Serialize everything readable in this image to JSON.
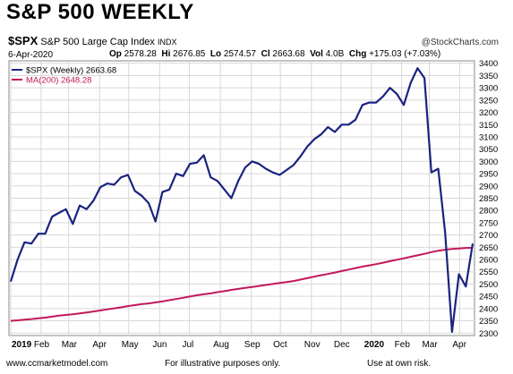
{
  "header": {
    "banner": "S&P 500 WEEKLY",
    "symbol": "$SPX",
    "description": "S&P 500 Large Cap Index",
    "exchange": "INDX",
    "copyright": "@StockCharts.com",
    "date": "6-Apr-2020",
    "ohlc": {
      "op_label": "Op",
      "op": "2578.28",
      "hi_label": "Hi",
      "hi": "2676.85",
      "lo_label": "Lo",
      "lo": "2574.57",
      "cl_label": "Cl",
      "cl": "2663.68",
      "vol_label": "Vol",
      "vol": "4.0B",
      "chg_label": "Chg",
      "chg": "+175.03 (+7.03%)"
    }
  },
  "footer": {
    "left": "www.ccmarketmodel.com",
    "center": "For illustrative purposes only.",
    "right": "Use at own risk."
  },
  "colors": {
    "price": "#1a237e",
    "ma": "#c2185b",
    "grid": "#d8d8d8"
  },
  "chart_data": {
    "type": "line",
    "grid": true,
    "y_axis_side": "right",
    "ylim": [
      2290,
      3410
    ],
    "y_ticks": [
      2300,
      2350,
      2400,
      2450,
      2500,
      2550,
      2600,
      2650,
      2700,
      2750,
      2800,
      2850,
      2900,
      2950,
      3000,
      3050,
      3100,
      3150,
      3200,
      3250,
      3300,
      3350,
      3400
    ],
    "x_ticks": [
      {
        "label": "2019",
        "week": 0,
        "bold": true
      },
      {
        "label": "Feb",
        "week": 4.4
      },
      {
        "label": "Mar",
        "week": 8.4
      },
      {
        "label": "Apr",
        "week": 12.9
      },
      {
        "label": "May",
        "week": 17.1
      },
      {
        "label": "Jun",
        "week": 21.6
      },
      {
        "label": "Jul",
        "week": 25.9
      },
      {
        "label": "Aug",
        "week": 30.4
      },
      {
        "label": "Sep",
        "week": 34.9
      },
      {
        "label": "Oct",
        "week": 39.1
      },
      {
        "label": "Nov",
        "week": 43.6
      },
      {
        "label": "Dec",
        "week": 47.9
      },
      {
        "label": "2020",
        "week": 52.3,
        "bold": true
      },
      {
        "label": "Feb",
        "week": 56.7
      },
      {
        "label": "Mar",
        "week": 60.7
      },
      {
        "label": "Apr",
        "week": 65.1
      }
    ],
    "legend": [
      {
        "label": "$SPX (Weekly) 2663.68",
        "series": 0
      },
      {
        "label": "MA(200) 2648.28",
        "series": 1
      }
    ],
    "series": [
      {
        "name": "$SPX (Weekly)",
        "values": [
          2510,
          2600,
          2670,
          2665,
          2705,
          2705,
          2775,
          2790,
          2805,
          2745,
          2820,
          2805,
          2840,
          2895,
          2910,
          2905,
          2935,
          2945,
          2880,
          2860,
          2830,
          2755,
          2875,
          2885,
          2950,
          2940,
          2990,
          2995,
          3025,
          2935,
          2920,
          2885,
          2850,
          2920,
          2975,
          3000,
          2990,
          2970,
          2955,
          2945,
          2965,
          2985,
          3020,
          3060,
          3090,
          3110,
          3140,
          3120,
          3150,
          3150,
          3170,
          3230,
          3240,
          3240,
          3265,
          3300,
          3275,
          3230,
          3320,
          3380,
          3340,
          2955,
          2970,
          2710,
          2305,
          2540,
          2490,
          2665
        ]
      },
      {
        "name": "MA(200)",
        "values": [
          2350,
          2352,
          2355,
          2357,
          2360,
          2363,
          2367,
          2371,
          2374,
          2377,
          2380,
          2384,
          2388,
          2392,
          2397,
          2401,
          2405,
          2410,
          2414,
          2418,
          2421,
          2425,
          2429,
          2434,
          2439,
          2444,
          2449,
          2454,
          2458,
          2462,
          2467,
          2471,
          2476,
          2480,
          2484,
          2488,
          2492,
          2496,
          2500,
          2504,
          2508,
          2512,
          2518,
          2524,
          2530,
          2536,
          2541,
          2547,
          2553,
          2559,
          2565,
          2571,
          2576,
          2581,
          2587,
          2593,
          2599,
          2605,
          2611,
          2617,
          2623,
          2630,
          2636,
          2640,
          2643,
          2645,
          2647,
          2648
        ]
      }
    ]
  }
}
